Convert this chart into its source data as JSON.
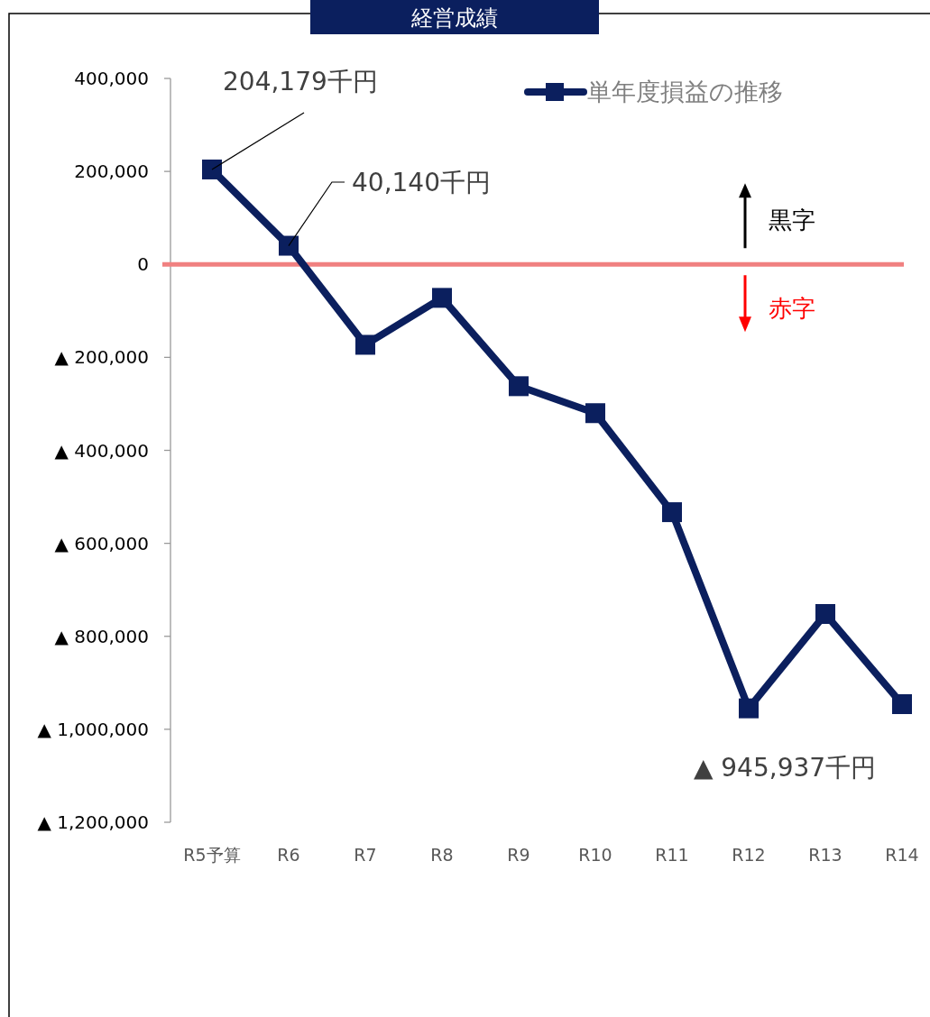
{
  "chart_data": {
    "type": "line",
    "title": "経営成績",
    "categories": [
      "R5予算",
      "R6",
      "R7",
      "R8",
      "R9",
      "R10",
      "R11",
      "R12",
      "R13",
      "R14"
    ],
    "series": [
      {
        "name": "単年度損益の推移",
        "color": "#0b1f5e",
        "values": [
          204179,
          40140,
          -173000,
          -72000,
          -262000,
          -320000,
          -533000,
          -955000,
          -752000,
          -945937
        ]
      }
    ],
    "ylim": [
      -1200000,
      400000
    ],
    "yticks": [
      {
        "value": -1200000,
        "label": "▲ 1,200,000"
      },
      {
        "value": -1000000,
        "label": "▲ 1,000,000"
      },
      {
        "value": -800000,
        "label": "▲ 800,000"
      },
      {
        "value": -600000,
        "label": "▲ 600,000"
      },
      {
        "value": -400000,
        "label": "▲ 400,000"
      },
      {
        "value": -200000,
        "label": "▲ 200,000"
      },
      {
        "value": 0,
        "label": "0"
      },
      {
        "value": 200000,
        "label": "200,000"
      },
      {
        "value": 400000,
        "label": "400,000"
      }
    ],
    "ref_lines": [
      {
        "axis": "y",
        "value": 0,
        "color": "#f08080"
      }
    ],
    "annotations": [
      {
        "text": "204,179千円",
        "x": "R5予算",
        "y": 204179
      },
      {
        "text": "40,140千円",
        "x": "R6",
        "y": 40140
      },
      {
        "text": "▲ 945,937千円",
        "x": "R14",
        "y": -945937
      },
      "黒字",
      "赤字"
    ],
    "legend": "top right",
    "marker": "square",
    "line_style": "solid",
    "grid": false
  }
}
